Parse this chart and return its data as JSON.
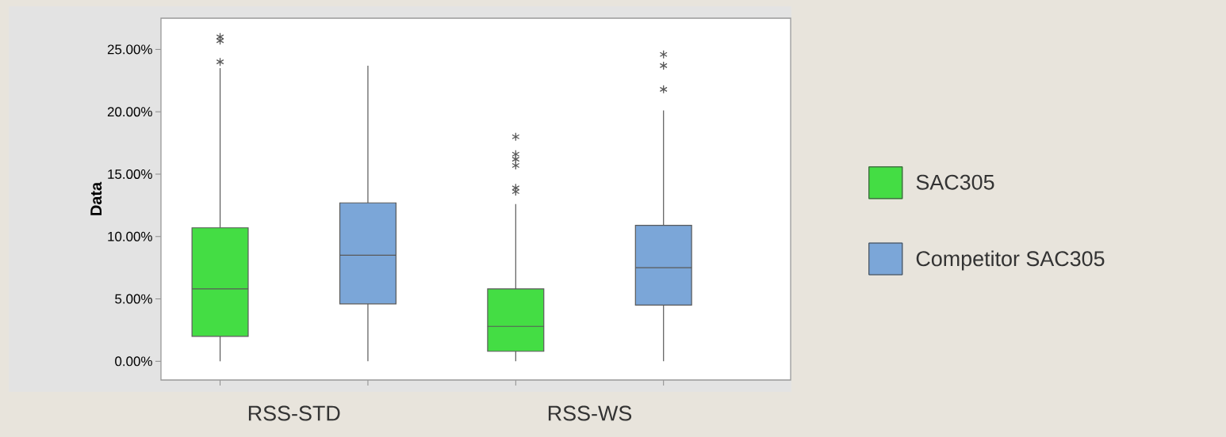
{
  "chart_data": {
    "type": "box",
    "ylabel": "Data",
    "categories": [
      "RSS-STD",
      "RSS-WS"
    ],
    "series": [
      {
        "name": "SAC305",
        "color": "#44dd44",
        "boxes": [
          {
            "low": 0,
            "q1": 2.0,
            "median": 5.8,
            "q3": 10.7,
            "high": 23.5,
            "outliers": [
              24.0,
              25.7,
              26.0
            ]
          },
          {
            "low": 0,
            "q1": 0.8,
            "median": 2.8,
            "q3": 5.8,
            "high": 12.6,
            "outliers": [
              13.6,
              13.9,
              15.7,
              16.2,
              16.6,
              18.0
            ]
          }
        ]
      },
      {
        "name": "Competitor SAC305",
        "color": "#7ba6d8",
        "boxes": [
          {
            "low": 0,
            "q1": 4.6,
            "median": 8.5,
            "q3": 12.7,
            "high": 23.7
          },
          {
            "low": 0,
            "q1": 4.5,
            "median": 7.5,
            "q3": 10.9,
            "high": 20.1,
            "outliers": [
              21.8,
              23.7,
              24.6
            ]
          }
        ]
      }
    ],
    "ylim": [
      -1.5,
      27.5
    ],
    "yticks": [
      {
        "value": 0,
        "label": "0.00%"
      },
      {
        "value": 5,
        "label": "5.00%"
      },
      {
        "value": 10,
        "label": "10.00%"
      },
      {
        "value": 15,
        "label": "15.00%"
      },
      {
        "value": 20,
        "label": "20.00%"
      },
      {
        "value": 25,
        "label": "25.00%"
      }
    ],
    "legend": "right",
    "marker": "star",
    "grid": false
  }
}
